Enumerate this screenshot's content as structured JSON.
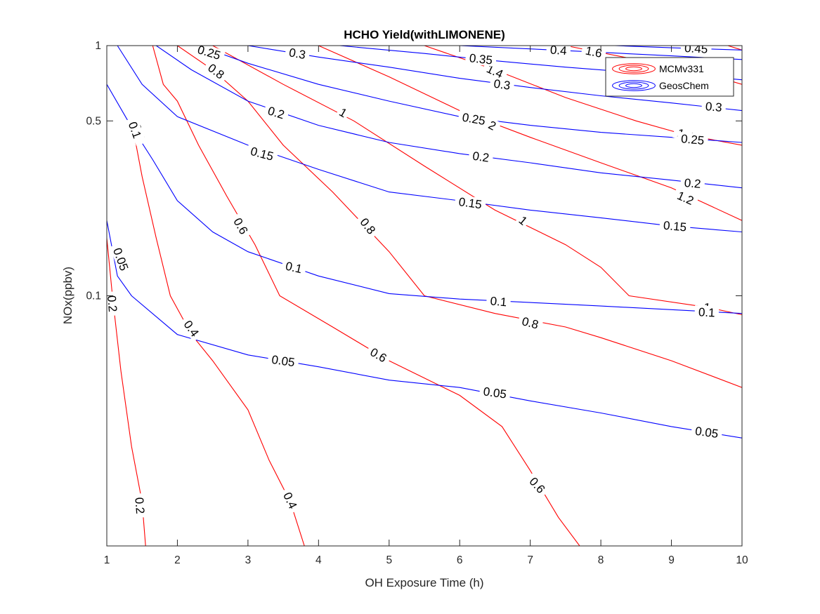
{
  "chart_data": {
    "type": "contour",
    "title": "HCHO Yield(withLIMONENE)",
    "xlabel": "OH Exposure Time (h)",
    "ylabel": "NOx(ppbv)",
    "xlim": [
      1,
      10
    ],
    "ylim": [
      0.01,
      1
    ],
    "yscale": "log",
    "xticks": [
      1,
      2,
      3,
      4,
      5,
      6,
      7,
      8,
      9,
      10
    ],
    "yticks": [
      0.1,
      0.5,
      1
    ],
    "ytick_labels": [
      "0.1",
      "0.5",
      "1"
    ],
    "grid": false,
    "legend_position": "top-right",
    "series": [
      {
        "name": "MCMv331",
        "color": "#ff0000",
        "levels": [
          {
            "value": 0.2,
            "label": "0.2",
            "points": [
              [
                1.0,
                0.17
              ],
              [
                1.08,
                0.1
              ],
              [
                1.2,
                0.05
              ],
              [
                1.35,
                0.025
              ],
              [
                1.5,
                0.015
              ],
              [
                1.55,
                0.01
              ]
            ]
          },
          {
            "value": 0.4,
            "label": "0.4",
            "points": [
              [
                1.35,
                0.5
              ],
              [
                1.5,
                0.3
              ],
              [
                1.7,
                0.17
              ],
              [
                1.9,
                0.1
              ],
              [
                2.2,
                0.07
              ],
              [
                2.5,
                0.055
              ],
              [
                3.0,
                0.035
              ],
              [
                3.3,
                0.022
              ],
              [
                3.6,
                0.015
              ],
              [
                3.8,
                0.01
              ]
            ]
          },
          {
            "value": 0.6,
            "label": "0.6",
            "points": [
              [
                1.65,
                1.0
              ],
              [
                1.8,
                0.7
              ],
              [
                2.0,
                0.6
              ],
              [
                2.3,
                0.4
              ],
              [
                2.7,
                0.25
              ],
              [
                3.1,
                0.16
              ],
              [
                3.45,
                0.1
              ],
              [
                4.2,
                0.075
              ],
              [
                5.0,
                0.055
              ],
              [
                6.0,
                0.04
              ],
              [
                6.6,
                0.03
              ],
              [
                7.0,
                0.02
              ],
              [
                7.4,
                0.013
              ],
              [
                7.7,
                0.01
              ]
            ]
          },
          {
            "value": 0.8,
            "label": "0.8",
            "points": [
              [
                2.0,
                1.0
              ],
              [
                2.5,
                0.8
              ],
              [
                3.0,
                0.6
              ],
              [
                3.5,
                0.4
              ],
              [
                4.2,
                0.26
              ],
              [
                5.0,
                0.15
              ],
              [
                5.5,
                0.1
              ],
              [
                6.5,
                0.085
              ],
              [
                7.5,
                0.075
              ],
              [
                8.0,
                0.068
              ],
              [
                9.0,
                0.055
              ],
              [
                10.0,
                0.043
              ]
            ]
          },
          {
            "value": 1.0,
            "label": "1",
            "points": [
              [
                2.5,
                1.0
              ],
              [
                3.5,
                0.7
              ],
              [
                4.5,
                0.5
              ],
              [
                5.5,
                0.33
              ],
              [
                6.5,
                0.22
              ],
              [
                7.5,
                0.16
              ],
              [
                8.0,
                0.13
              ],
              [
                8.4,
                0.1
              ],
              [
                9.5,
                0.09
              ],
              [
                10.0,
                0.084
              ]
            ]
          },
          {
            "value": 1.2,
            "label": "1.2",
            "points": [
              [
                4.0,
                1.0
              ],
              [
                5.0,
                0.75
              ],
              [
                6.0,
                0.55
              ],
              [
                7.0,
                0.43
              ],
              [
                8.0,
                0.34
              ],
              [
                9.0,
                0.27
              ],
              [
                10.0,
                0.2
              ]
            ]
          },
          {
            "value": 1.4,
            "label": "1.4",
            "points": [
              [
                5.5,
                1.0
              ],
              [
                6.5,
                0.8
              ],
              [
                7.5,
                0.62
              ],
              [
                8.5,
                0.5
              ],
              [
                9.2,
                0.44
              ],
              [
                10.0,
                0.4
              ]
            ]
          },
          {
            "value": 1.6,
            "label": "1.6",
            "points": [
              [
                7.5,
                1.0
              ],
              [
                8.5,
                0.88
              ],
              [
                9.5,
                0.77
              ],
              [
                10.0,
                0.7
              ]
            ]
          },
          {
            "value": 1.8,
            "label": "",
            "points": [
              [
                9.8,
                1.0
              ],
              [
                10.0,
                0.96
              ]
            ]
          }
        ]
      },
      {
        "name": "GeosChem",
        "color": "#0000ff",
        "levels": [
          {
            "value": 0.05,
            "label": "0.05",
            "points": [
              [
                1.0,
                0.2
              ],
              [
                1.15,
                0.12
              ],
              [
                1.35,
                0.1
              ],
              [
                2.0,
                0.07
              ],
              [
                3.0,
                0.058
              ],
              [
                4.0,
                0.052
              ],
              [
                5.0,
                0.046
              ],
              [
                6.0,
                0.043
              ],
              [
                7.0,
                0.038
              ],
              [
                8.0,
                0.034
              ],
              [
                9.0,
                0.03
              ],
              [
                10.0,
                0.027
              ]
            ]
          },
          {
            "value": 0.1,
            "label": "0.1",
            "points": [
              [
                1.0,
                0.7
              ],
              [
                1.3,
                0.5
              ],
              [
                1.65,
                0.35
              ],
              [
                2.0,
                0.24
              ],
              [
                2.5,
                0.18
              ],
              [
                3.0,
                0.15
              ],
              [
                4.0,
                0.12
              ],
              [
                5.0,
                0.102
              ],
              [
                6.0,
                0.097
              ],
              [
                7.0,
                0.094
              ],
              [
                8.0,
                0.091
              ],
              [
                9.0,
                0.088
              ],
              [
                10.0,
                0.085
              ]
            ]
          },
          {
            "value": 0.15,
            "label": "0.15",
            "points": [
              [
                1.15,
                1.0
              ],
              [
                1.5,
                0.7
              ],
              [
                2.0,
                0.52
              ],
              [
                3.0,
                0.4
              ],
              [
                4.0,
                0.32
              ],
              [
                5.0,
                0.26
              ],
              [
                6.0,
                0.24
              ],
              [
                7.0,
                0.22
              ],
              [
                8.0,
                0.205
              ],
              [
                9.0,
                0.19
              ],
              [
                10.0,
                0.18
              ]
            ]
          },
          {
            "value": 0.2,
            "label": "0.2",
            "points": [
              [
                1.7,
                1.0
              ],
              [
                2.2,
                0.8
              ],
              [
                3.0,
                0.6
              ],
              [
                4.0,
                0.48
              ],
              [
                5.0,
                0.41
              ],
              [
                6.0,
                0.37
              ],
              [
                7.0,
                0.34
              ],
              [
                8.0,
                0.31
              ],
              [
                9.0,
                0.29
              ],
              [
                10.0,
                0.27
              ]
            ]
          },
          {
            "value": 0.25,
            "label": "0.25",
            "points": [
              [
                2.3,
                1.0
              ],
              [
                3.0,
                0.85
              ],
              [
                4.0,
                0.7
              ],
              [
                5.0,
                0.6
              ],
              [
                6.0,
                0.52
              ],
              [
                7.0,
                0.48
              ],
              [
                8.0,
                0.45
              ],
              [
                9.0,
                0.43
              ],
              [
                10.0,
                0.41
              ]
            ]
          },
          {
            "value": 0.3,
            "label": "0.3",
            "points": [
              [
                3.0,
                1.0
              ],
              [
                4.0,
                0.9
              ],
              [
                5.0,
                0.82
              ],
              [
                6.0,
                0.74
              ],
              [
                7.0,
                0.68
              ],
              [
                8.0,
                0.63
              ],
              [
                9.0,
                0.59
              ],
              [
                10.0,
                0.55
              ]
            ]
          },
          {
            "value": 0.35,
            "label": "0.35",
            "points": [
              [
                4.3,
                1.0
              ],
              [
                5.5,
                0.93
              ],
              [
                6.5,
                0.87
              ],
              [
                7.5,
                0.82
              ],
              [
                8.5,
                0.78
              ],
              [
                9.5,
                0.75
              ],
              [
                10.0,
                0.73
              ]
            ]
          },
          {
            "value": 0.4,
            "label": "0.4",
            "points": [
              [
                6.0,
                1.0
              ],
              [
                7.0,
                0.97
              ],
              [
                8.0,
                0.94
              ],
              [
                9.0,
                0.91
              ],
              [
                10.0,
                0.88
              ]
            ]
          },
          {
            "value": 0.45,
            "label": "0.45",
            "points": [
              [
                8.2,
                1.0
              ],
              [
                9.0,
                0.98
              ],
              [
                10.0,
                0.96
              ]
            ]
          }
        ]
      }
    ],
    "contour_labels": [
      {
        "series": "MCMv331",
        "text": "0.2",
        "x": 1.08,
        "y": 0.093,
        "angle": 85
      },
      {
        "series": "MCMv331",
        "text": "0.2",
        "x": 1.47,
        "y": 0.0145,
        "angle": 85
      },
      {
        "series": "MCMv331",
        "text": "0.4",
        "x": 1.45,
        "y": 0.45,
        "angle": 72
      },
      {
        "series": "MCMv331",
        "text": "0.4",
        "x": 2.2,
        "y": 0.074,
        "angle": 55
      },
      {
        "series": "MCMv331",
        "text": "0.4",
        "x": 3.6,
        "y": 0.0152,
        "angle": 65
      },
      {
        "series": "MCMv331",
        "text": "0.6",
        "x": 2.9,
        "y": 0.19,
        "angle": 60
      },
      {
        "series": "MCMv331",
        "text": "0.6",
        "x": 4.85,
        "y": 0.058,
        "angle": 30
      },
      {
        "series": "MCMv331",
        "text": "0.6",
        "x": 7.1,
        "y": 0.0175,
        "angle": 48
      },
      {
        "series": "MCMv331",
        "text": "0.8",
        "x": 2.55,
        "y": 0.79,
        "angle": 37
      },
      {
        "series": "MCMv331",
        "text": "0.8",
        "x": 4.7,
        "y": 0.19,
        "angle": 52
      },
      {
        "series": "MCMv331",
        "text": "0.8",
        "x": 7.0,
        "y": 0.078,
        "angle": 15
      },
      {
        "series": "MCMv331",
        "text": "1",
        "x": 4.35,
        "y": 0.54,
        "angle": 30
      },
      {
        "series": "MCMv331",
        "text": "1",
        "x": 6.9,
        "y": 0.2,
        "angle": 40
      },
      {
        "series": "MCMv331",
        "text": "1",
        "x": 9.5,
        "y": 0.09,
        "angle": 15
      },
      {
        "series": "MCMv331",
        "text": "1.2",
        "x": 6.4,
        "y": 0.49,
        "angle": 28
      },
      {
        "series": "MCMv331",
        "text": "1.2",
        "x": 9.2,
        "y": 0.246,
        "angle": 24
      },
      {
        "series": "MCMv331",
        "text": "1.4",
        "x": 6.5,
        "y": 0.79,
        "angle": 25
      },
      {
        "series": "MCMv331",
        "text": "1.4",
        "x": 9.2,
        "y": 0.44,
        "angle": 18
      },
      {
        "series": "MCMv331",
        "text": "1.6",
        "x": 7.9,
        "y": 0.945,
        "angle": 12
      },
      {
        "series": "GeosChem",
        "text": "0.05",
        "x": 1.2,
        "y": 0.14,
        "angle": 70
      },
      {
        "series": "GeosChem",
        "text": "0.05",
        "x": 3.5,
        "y": 0.055,
        "angle": 8
      },
      {
        "series": "GeosChem",
        "text": "0.05",
        "x": 6.5,
        "y": 0.041,
        "angle": 8
      },
      {
        "series": "GeosChem",
        "text": "0.05",
        "x": 9.5,
        "y": 0.0285,
        "angle": 8
      },
      {
        "series": "GeosChem",
        "text": "0.1",
        "x": 1.4,
        "y": 0.46,
        "angle": 70
      },
      {
        "series": "GeosChem",
        "text": "0.1",
        "x": 3.65,
        "y": 0.13,
        "angle": 13
      },
      {
        "series": "GeosChem",
        "text": "0.1",
        "x": 6.55,
        "y": 0.095,
        "angle": 5
      },
      {
        "series": "GeosChem",
        "text": "0.1",
        "x": 9.5,
        "y": 0.086,
        "angle": 3
      },
      {
        "series": "GeosChem",
        "text": "0.15",
        "x": 3.2,
        "y": 0.37,
        "angle": 15
      },
      {
        "series": "GeosChem",
        "text": "0.15",
        "x": 6.15,
        "y": 0.235,
        "angle": 8
      },
      {
        "series": "GeosChem",
        "text": "0.15",
        "x": 9.05,
        "y": 0.19,
        "angle": 5
      },
      {
        "series": "GeosChem",
        "text": "0.2",
        "x": 3.4,
        "y": 0.54,
        "angle": 17
      },
      {
        "series": "GeosChem",
        "text": "0.2",
        "x": 6.3,
        "y": 0.36,
        "angle": 8
      },
      {
        "series": "GeosChem",
        "text": "0.2",
        "x": 9.3,
        "y": 0.282,
        "angle": 5
      },
      {
        "series": "GeosChem",
        "text": "0.25",
        "x": 2.45,
        "y": 0.94,
        "angle": 17
      },
      {
        "series": "GeosChem",
        "text": "0.25",
        "x": 6.2,
        "y": 0.51,
        "angle": 10
      },
      {
        "series": "GeosChem",
        "text": "0.25",
        "x": 9.3,
        "y": 0.422,
        "angle": 5
      },
      {
        "series": "GeosChem",
        "text": "0.3",
        "x": 3.7,
        "y": 0.93,
        "angle": 10
      },
      {
        "series": "GeosChem",
        "text": "0.3",
        "x": 6.6,
        "y": 0.7,
        "angle": 8
      },
      {
        "series": "GeosChem",
        "text": "0.3",
        "x": 9.6,
        "y": 0.57,
        "angle": 5
      },
      {
        "series": "GeosChem",
        "text": "0.35",
        "x": 6.3,
        "y": 0.885,
        "angle": 6
      },
      {
        "series": "GeosChem",
        "text": "0.4",
        "x": 7.4,
        "y": 0.96,
        "angle": 4
      },
      {
        "series": "GeosChem",
        "text": "0.45",
        "x": 9.35,
        "y": 0.975,
        "angle": 3
      }
    ]
  }
}
